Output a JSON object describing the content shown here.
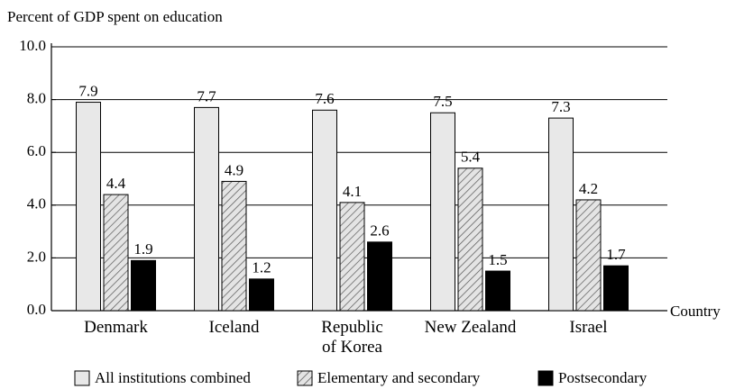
{
  "chart_data": {
    "type": "bar",
    "y_axis_label": "Percent of GDP spent on education",
    "x_axis_label": "Country",
    "categories": [
      "Denmark",
      "Iceland",
      "Republic\nof Korea",
      "New Zealand",
      "Israel"
    ],
    "series": [
      {
        "name": "All institutions combined",
        "color": "#e8e8e8",
        "values": [
          7.9,
          7.7,
          7.6,
          7.5,
          7.3
        ]
      },
      {
        "name": "Elementary and secondary",
        "color": "#d9d9d9",
        "pattern": "hatch",
        "values": [
          4.4,
          4.9,
          4.1,
          5.4,
          4.2
        ]
      },
      {
        "name": "Postsecondary",
        "color": "#000000",
        "values": [
          1.9,
          1.2,
          2.6,
          1.5,
          1.7
        ]
      }
    ],
    "ylim": [
      0,
      10
    ],
    "yticks": [
      {
        "value": 0,
        "label": "0.0"
      },
      {
        "value": 2,
        "label": "2.0"
      },
      {
        "value": 4,
        "label": "4.0"
      },
      {
        "value": 6,
        "label": "6.0"
      },
      {
        "value": 8,
        "label": "8.0"
      },
      {
        "value": 10,
        "label": "10.0"
      }
    ],
    "grid": true
  }
}
